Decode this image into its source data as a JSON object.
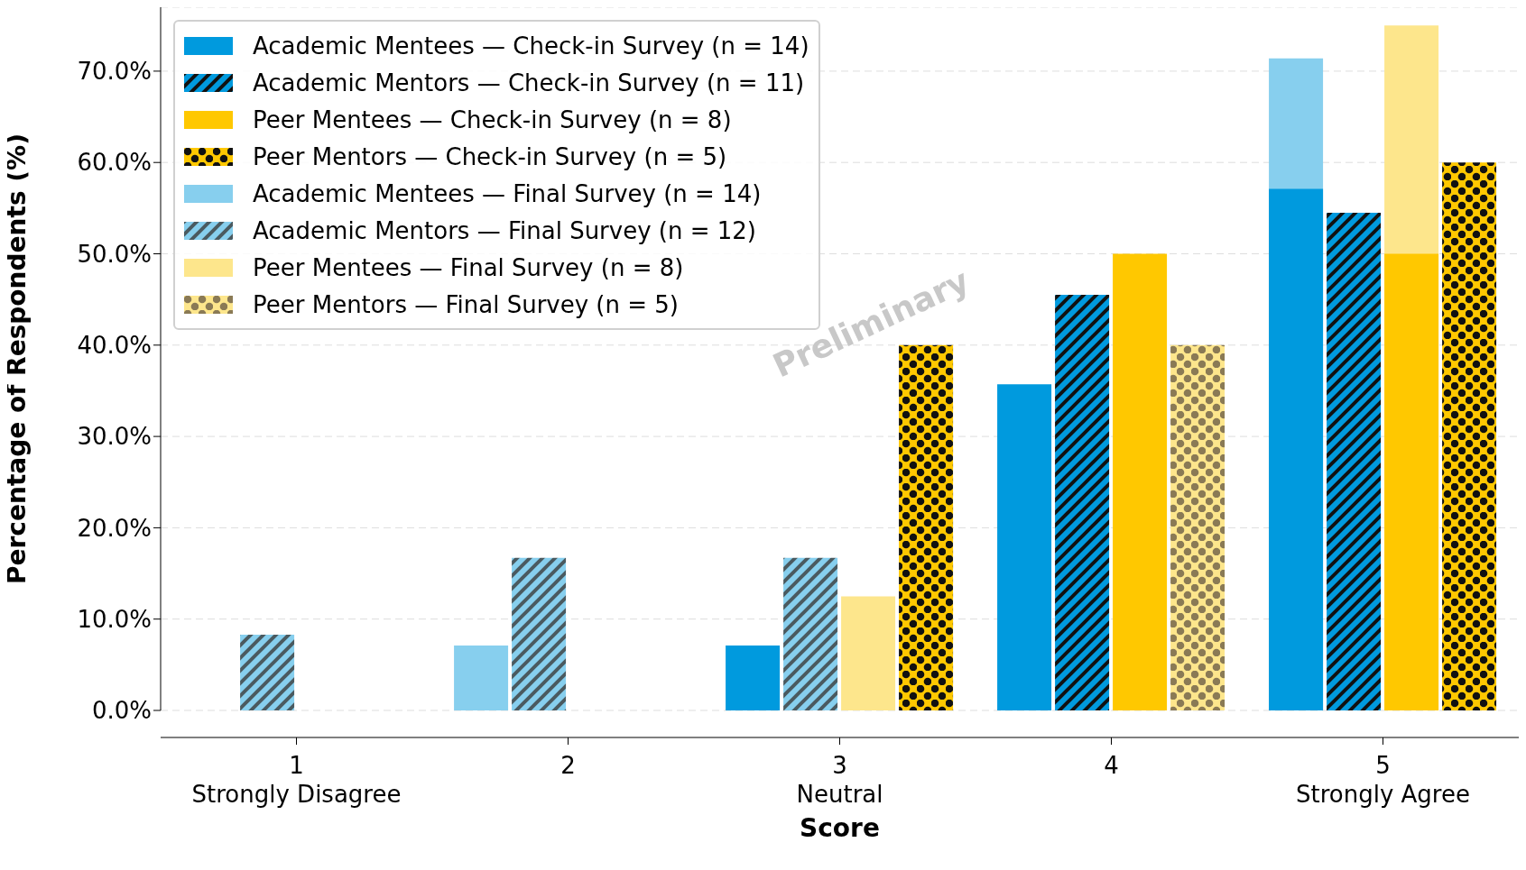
{
  "chart_data": {
    "type": "bar",
    "categories": [
      "1\nStrongly Disagree",
      "2",
      "3\nNeutral",
      "4",
      "5\nStrongly Agree"
    ],
    "xlabel": "Score",
    "ylabel": "Percentage of Respondents (%)",
    "series": [
      {
        "name": "Academic Mentees — Check-in Survey (n = 14)",
        "color": "#009ade",
        "values": [
          0,
          0,
          7.1,
          35.7,
          57.1
        ]
      },
      {
        "name": "Academic Mentors — Check-in Survey (n = 11)",
        "color": "#009ade",
        "values": [
          0,
          0,
          0,
          45.5,
          54.5
        ]
      },
      {
        "name": "Peer Mentees — Check-in Survey (n = 8)",
        "color": "#ffc800",
        "values": [
          0,
          0,
          0,
          50,
          50
        ]
      },
      {
        "name": "Peer Mentors — Check-in Survey (n = 5)",
        "color": "#ffc800",
        "values": [
          0,
          0,
          40,
          0,
          60
        ]
      },
      {
        "name": "Academic Mentees — Final Survey (n = 14)",
        "color": "#87cfee",
        "values": [
          0,
          7.1,
          null,
          null,
          71.4
        ]
      },
      {
        "name": "Academic Mentors — Final Survey (n = 12)",
        "color": "#87cfee",
        "values": [
          8.3,
          16.7,
          16.7,
          null,
          null
        ]
      },
      {
        "name": "Peer Mentees — Final Survey (n = 8)",
        "color": "#fde68c",
        "values": [
          0,
          0,
          12.5,
          null,
          75
        ]
      },
      {
        "name": "Peer Mentors — Final Survey (n = 5)",
        "color": "#fde68c",
        "values": [
          0,
          0,
          0,
          40,
          null
        ]
      }
    ],
    "ylim": [
      0,
      77
    ],
    "yticks": [
      {
        "value": 0,
        "label": "0.0%"
      },
      {
        "value": 10,
        "label": "10.0%"
      },
      {
        "value": 20,
        "label": "20.0%"
      },
      {
        "value": 30,
        "label": "30.0%"
      },
      {
        "value": 40,
        "label": "40.0%"
      },
      {
        "value": 50,
        "label": "50.0%"
      },
      {
        "value": 60,
        "label": "60.0%"
      },
      {
        "value": 70,
        "label": "70.0%"
      }
    ],
    "grid": "y",
    "legend": "top left",
    "annotations": [
      "Preliminary"
    ]
  }
}
